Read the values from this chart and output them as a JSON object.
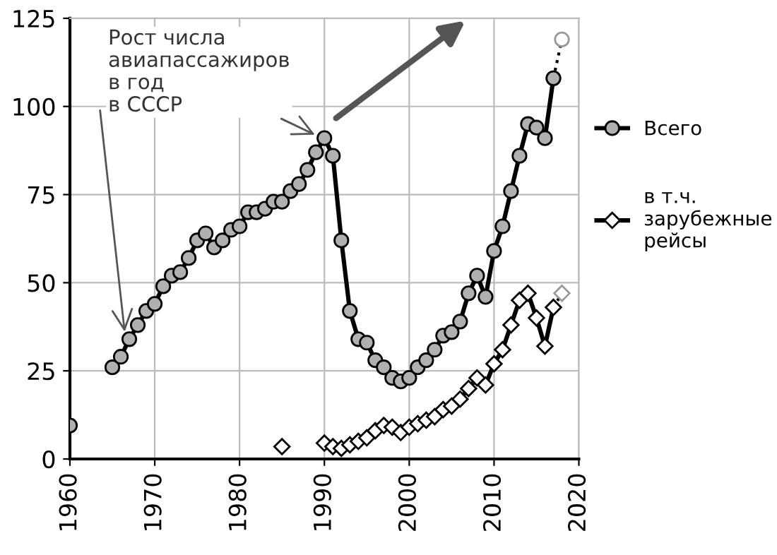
{
  "chart_data": {
    "type": "line",
    "annotations": [
      "Рост числа\nавиапассажиров\nв год\nв СССР"
    ],
    "xlim": [
      1960,
      2020
    ],
    "xticks": [
      1960,
      1970,
      1980,
      1990,
      2000,
      2010,
      2020
    ],
    "ylim": [
      0,
      125
    ],
    "yticks": [
      0,
      25,
      50,
      75,
      100,
      125
    ],
    "grid": true,
    "legend": "right",
    "series": [
      {
        "name": "Всего",
        "color": "#b0b0b0",
        "marker": "circle",
        "line_style": "solid",
        "x": [
          1960,
          1961,
          1962,
          1963,
          1964,
          1965,
          1966,
          1967,
          1968,
          1969,
          1970,
          1971,
          1972,
          1973,
          1974,
          1975,
          1976,
          1977,
          1978,
          1979,
          1980,
          1981,
          1982,
          1983,
          1984,
          1985,
          1986,
          1987,
          1988,
          1989,
          1990,
          1991,
          1992,
          1993,
          1994,
          1995,
          1996,
          1997,
          1998,
          1999,
          2000,
          2001,
          2002,
          2003,
          2004,
          2005,
          2006,
          2007,
          2008,
          2009,
          2010,
          2011,
          2012,
          2013,
          2014,
          2015,
          2016,
          2017
        ],
        "values": [
          9.5,
          null,
          null,
          null,
          null,
          26,
          29,
          34,
          38,
          42,
          44,
          49,
          52,
          53,
          57,
          62,
          64,
          60,
          62,
          65,
          66,
          70,
          70,
          71,
          73,
          73,
          76,
          78,
          82,
          87,
          91,
          86,
          62,
          42,
          34,
          33,
          28,
          26,
          23,
          22,
          23,
          26,
          28,
          31,
          35,
          36,
          39,
          47,
          52,
          46,
          59,
          66,
          76,
          86,
          95,
          94,
          91,
          108
        ]
      },
      {
        "name": "в т.ч.\nзарубежные\nрейсы",
        "color": "#ffffff",
        "marker": "diamond",
        "line_style": "solid",
        "x": [
          1985,
          1986,
          1987,
          1988,
          1989,
          1990,
          1991,
          1992,
          1993,
          1994,
          1995,
          1996,
          1997,
          1998,
          1999,
          2000,
          2001,
          2002,
          2003,
          2004,
          2005,
          2006,
          2007,
          2008,
          2009,
          2010,
          2011,
          2012,
          2013,
          2014,
          2015,
          2016,
          2017
        ],
        "values": [
          3.5,
          null,
          null,
          null,
          null,
          4.5,
          3.5,
          3,
          4,
          5,
          6,
          8,
          9.5,
          9,
          7.5,
          9,
          10,
          11,
          12,
          14,
          15,
          17,
          20,
          23,
          21,
          27,
          31,
          38,
          45,
          47,
          40,
          32,
          43
        ]
      },
      {
        "color": "#ffffff",
        "marker": "circle",
        "line_style": "dotted",
        "x": [
          2017,
          2018
        ],
        "values": [
          108,
          119
        ]
      },
      {
        "color": "#ffffff",
        "marker": "diamond",
        "line_style": "dotted",
        "x": [
          2017,
          2018
        ],
        "values": [
          43,
          47
        ]
      }
    ]
  }
}
